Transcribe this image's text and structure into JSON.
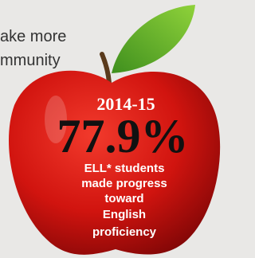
{
  "intro_lines": [
    "ake more",
    "mmunity"
  ],
  "apple": {
    "year": "2014-15",
    "stat": "77.9%",
    "caption_lines": [
      "ELL* students",
      "made progress",
      "toward",
      "English",
      "proficiency"
    ]
  }
}
